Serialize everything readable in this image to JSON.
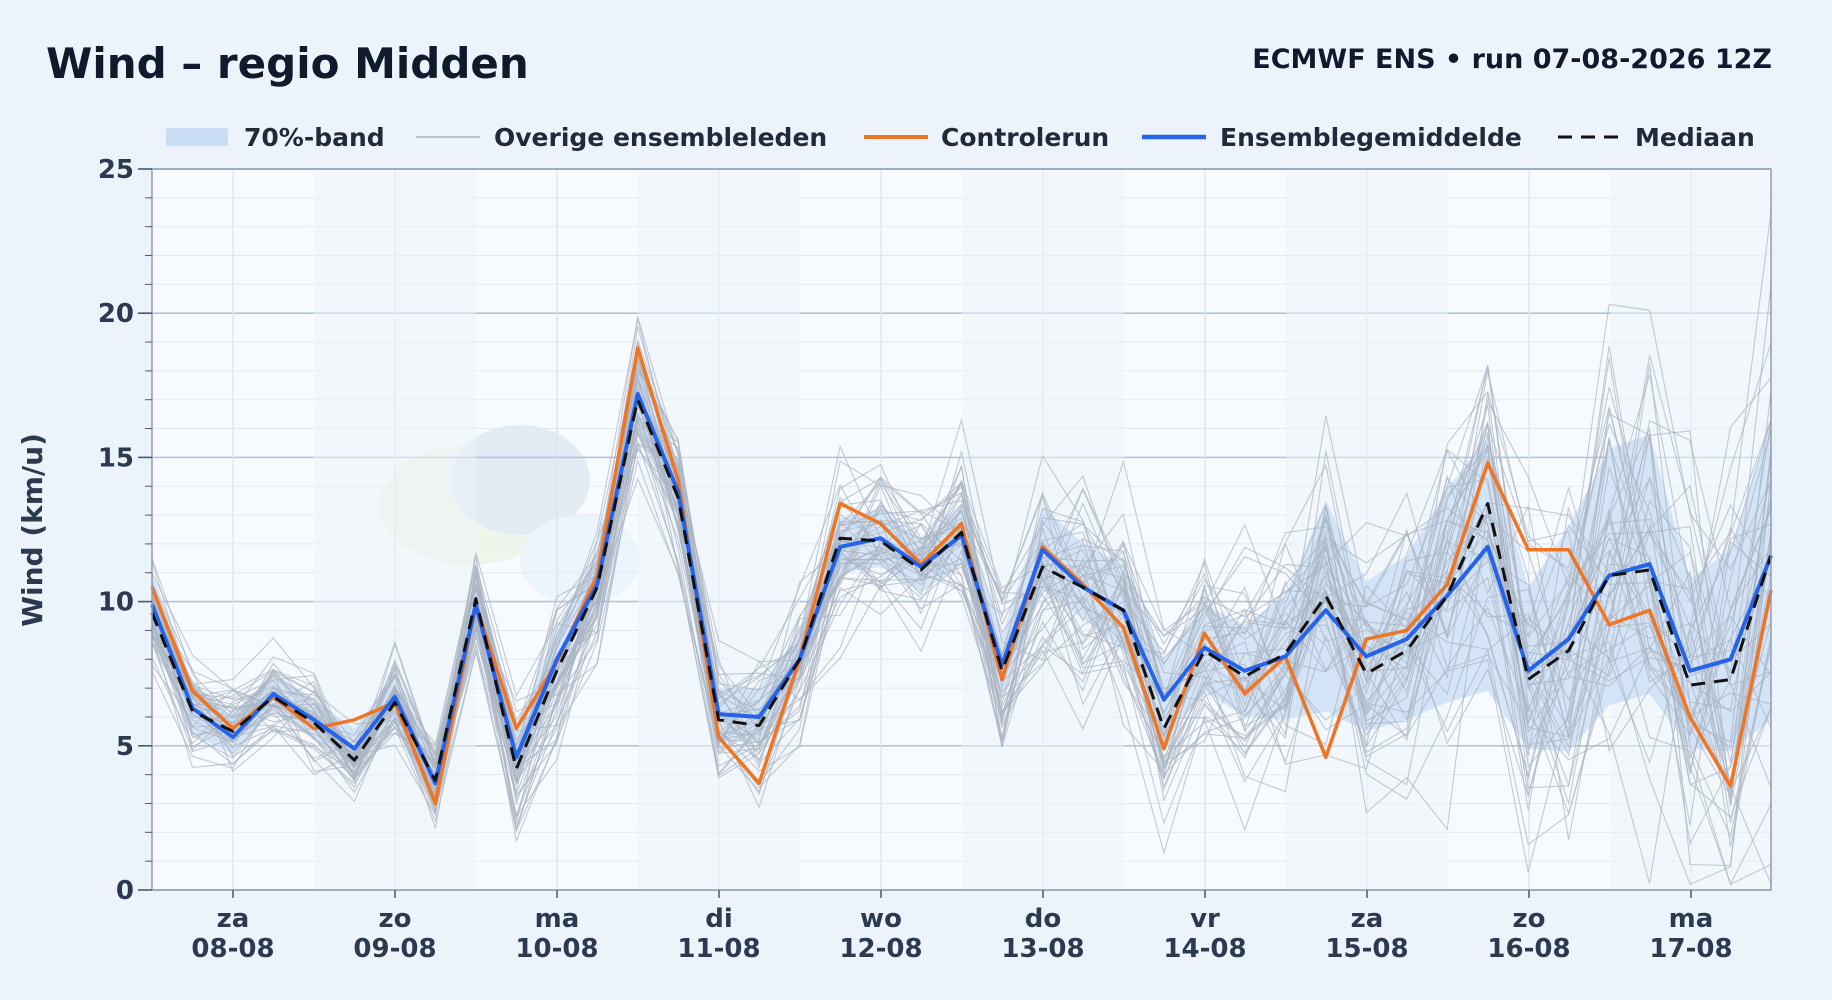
{
  "header": {
    "title": "Wind – regio Midden",
    "run_info": "ECMWF ENS • run 07-08-2026 12Z"
  },
  "legend": {
    "band": "70%-band",
    "members": "Overige ensembleleden",
    "control": "Controlerun",
    "mean": "Ensemblegemiddelde",
    "median": "Mediaan"
  },
  "colors": {
    "band": "#c9ddf5",
    "members": "#a9b3c2",
    "control": "#f07522",
    "mean": "#2563eb",
    "median": "#111111",
    "plot_bg": "#f7fbff",
    "page_bg": "#ecf3fb"
  },
  "chart_data": {
    "type": "line",
    "title": "Wind – regio Midden",
    "ylabel": "Wind (km/u)",
    "ylim": [
      0,
      25
    ],
    "yticks": [
      0,
      5,
      10,
      15,
      20,
      25
    ],
    "grid": true,
    "legend_position": "top",
    "x_unit": "days from 08-08 00Z, 6-hourly steps",
    "xlim": [
      0,
      10
    ],
    "day_ticks": [
      {
        "day": "za",
        "date": "08-08"
      },
      {
        "day": "zo",
        "date": "09-08"
      },
      {
        "day": "ma",
        "date": "10-08"
      },
      {
        "day": "di",
        "date": "11-08"
      },
      {
        "day": "wo",
        "date": "12-08"
      },
      {
        "day": "do",
        "date": "13-08"
      },
      {
        "day": "vr",
        "date": "14-08"
      },
      {
        "day": "za",
        "date": "15-08"
      },
      {
        "day": "zo",
        "date": "16-08"
      },
      {
        "day": "ma",
        "date": "17-08"
      }
    ],
    "series": [
      {
        "name": "Controlerun",
        "values": [
          10.5,
          6.9,
          5.6,
          6.7,
          5.6,
          5.9,
          6.5,
          3.0,
          9.9,
          5.6,
          7.9,
          10.9,
          18.8,
          14.2,
          5.3,
          3.7,
          8.0,
          13.4,
          12.7,
          11.3,
          12.7,
          7.3,
          11.9,
          10.6,
          9.1,
          4.9,
          8.9,
          6.8,
          8.1,
          4.6,
          8.7,
          9.0,
          10.6,
          14.8,
          11.8,
          11.8,
          9.2,
          9.7,
          6.0,
          3.6,
          10.4
        ]
      },
      {
        "name": "Ensemblegemiddelde",
        "values": [
          9.9,
          6.3,
          5.3,
          6.8,
          5.9,
          4.9,
          6.7,
          3.7,
          9.9,
          4.6,
          8.0,
          10.6,
          17.2,
          13.8,
          6.1,
          6.0,
          8.0,
          11.9,
          12.2,
          11.2,
          12.3,
          7.8,
          11.8,
          10.5,
          9.7,
          6.6,
          8.4,
          7.6,
          8.1,
          9.7,
          8.1,
          8.7,
          10.2,
          11.9,
          7.6,
          8.7,
          10.9,
          11.3,
          7.6,
          8.0,
          11.6
        ]
      },
      {
        "name": "Mediaan",
        "values": [
          9.6,
          6.2,
          5.5,
          6.7,
          5.8,
          4.5,
          6.5,
          3.8,
          10.1,
          4.2,
          7.6,
          10.5,
          17.0,
          13.6,
          5.9,
          5.7,
          8.0,
          12.2,
          12.1,
          11.1,
          12.4,
          7.6,
          11.2,
          10.5,
          9.7,
          5.6,
          8.3,
          7.4,
          8.2,
          10.2,
          7.5,
          8.3,
          10.2,
          13.4,
          7.3,
          8.3,
          10.9,
          11.1,
          7.1,
          7.3,
          11.6
        ]
      }
    ],
    "band_70": {
      "lower": [
        8.8,
        5.4,
        4.7,
        6.2,
        5.2,
        4.3,
        5.9,
        2.8,
        8.9,
        3.6,
        7.0,
        9.9,
        16.2,
        12.9,
        5.2,
        5.2,
        7.2,
        11.0,
        11.2,
        10.3,
        11.3,
        6.8,
        10.4,
        9.4,
        8.3,
        5.2,
        6.9,
        6.0,
        5.9,
        6.2,
        5.5,
        5.9,
        6.5,
        6.9,
        4.9,
        4.8,
        6.4,
        6.8,
        4.9,
        4.8,
        5.9
      ],
      "upper": [
        11.0,
        7.2,
        6.0,
        7.4,
        6.6,
        5.6,
        7.5,
        4.4,
        11.0,
        5.6,
        9.1,
        11.6,
        18.4,
        14.8,
        7.0,
        7.0,
        8.9,
        12.9,
        13.2,
        12.1,
        13.4,
        8.8,
        13.3,
        12.0,
        11.3,
        8.0,
        9.9,
        9.2,
        10.2,
        13.5,
        10.7,
        11.6,
        13.9,
        15.7,
        10.5,
        12.6,
        15.3,
        15.8,
        10.8,
        11.8,
        16.3
      ]
    },
    "members_count": 50,
    "members_note": "individual ensemble members, spread grows with lead time",
    "members_spread": [
      1.5,
      1.3,
      1.2,
      1.1,
      1.2,
      1.1,
      1.3,
      1.2,
      1.5,
      1.8,
      2.0,
      2.0,
      1.9,
      1.7,
      1.6,
      1.8,
      2.0,
      2.3,
      2.2,
      2.0,
      2.4,
      2.4,
      2.6,
      2.6,
      2.8,
      2.6,
      2.7,
      3.0,
      3.3,
      4.2,
      4.0,
      4.3,
      4.8,
      5.0,
      4.4,
      5.0,
      5.6,
      5.8,
      5.4,
      5.8,
      6.6
    ]
  }
}
